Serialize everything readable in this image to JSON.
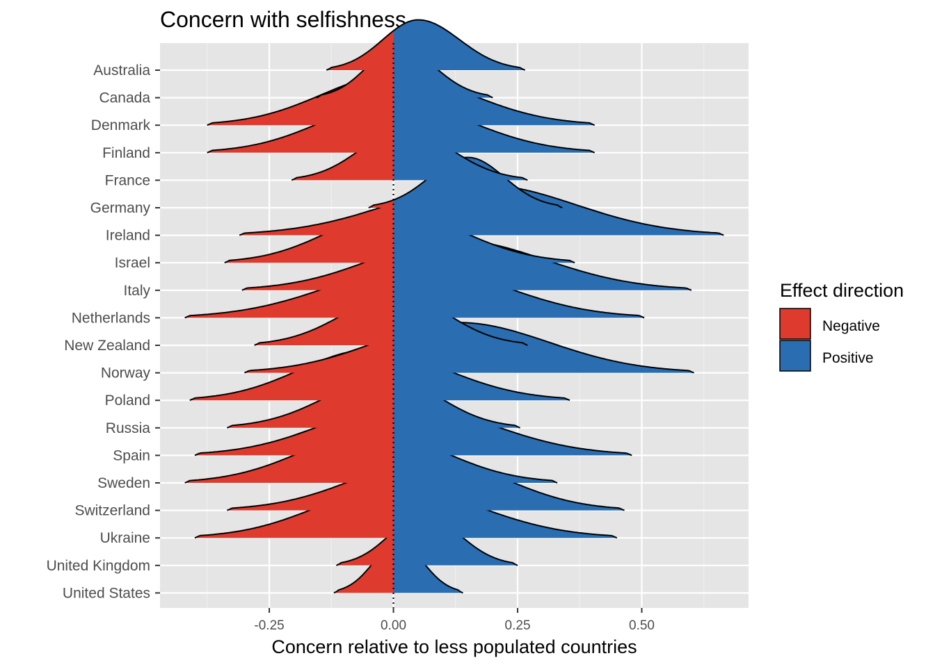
{
  "chart_data": {
    "type": "ridgeline",
    "title": "Concern with selfishness",
    "xlabel": "Concern relative to less populated countries",
    "ylabel": "",
    "xlim": [
      -0.47,
      0.715
    ],
    "x_ticks": [
      -0.25,
      0.0,
      0.25,
      0.5
    ],
    "x_tick_labels": [
      "-0.25",
      "0.00",
      "0.25",
      "0.50"
    ],
    "reference_line": {
      "x": 0,
      "style": "dotted"
    },
    "panel_background": "#e5e5e5",
    "grid": true,
    "legend": {
      "title": "Effect direction",
      "position": "right",
      "items": [
        {
          "label": "Negative",
          "color": "#de3a2e"
        },
        {
          "label": "Positive",
          "color": "#2a6db0"
        }
      ]
    },
    "series": [
      {
        "name": "United States",
        "min": -0.12,
        "max": 0.14,
        "mode": 0.01,
        "peak": 1.0
      },
      {
        "name": "United Kingdom",
        "min": -0.115,
        "max": 0.25,
        "mode": 0.06,
        "peak": 1.0
      },
      {
        "name": "Ukraine",
        "min": -0.4,
        "max": 0.45,
        "mode": 0.0,
        "peak": 1.0
      },
      {
        "name": "Switzerland",
        "min": -0.335,
        "max": 0.465,
        "mode": 0.08,
        "peak": 1.0
      },
      {
        "name": "Sweden",
        "min": -0.42,
        "max": 0.33,
        "mode": -0.04,
        "peak": 1.0
      },
      {
        "name": "Spain",
        "min": -0.4,
        "max": 0.48,
        "mode": 0.02,
        "peak": 1.0
      },
      {
        "name": "Russia",
        "min": -0.335,
        "max": 0.255,
        "mode": -0.01,
        "peak": 1.0
      },
      {
        "name": "Poland",
        "min": -0.41,
        "max": 0.355,
        "mode": -0.05,
        "peak": 1.0
      },
      {
        "name": "Norway",
        "min": -0.3,
        "max": 0.605,
        "mode": 0.13,
        "peak": 1.0
      },
      {
        "name": "New Zealand",
        "min": -0.28,
        "max": 0.27,
        "mode": 0.01,
        "peak": 1.0
      },
      {
        "name": "Netherlands",
        "min": -0.42,
        "max": 0.505,
        "mode": 0.05,
        "peak": 1.0
      },
      {
        "name": "Italy",
        "min": -0.305,
        "max": 0.6,
        "mode": 0.12,
        "peak": 1.0
      },
      {
        "name": "Israel",
        "min": -0.34,
        "max": 0.365,
        "mode": 0.0,
        "peak": 1.0
      },
      {
        "name": "Ireland",
        "min": -0.31,
        "max": 0.665,
        "mode": 0.18,
        "peak": 1.0
      },
      {
        "name": "Germany",
        "min": -0.05,
        "max": 0.34,
        "mode": 0.15,
        "peak": 1.0
      },
      {
        "name": "France",
        "min": -0.205,
        "max": 0.27,
        "mode": 0.02,
        "peak": 1.0
      },
      {
        "name": "Finland",
        "min": -0.375,
        "max": 0.405,
        "mode": 0.0,
        "peak": 1.0
      },
      {
        "name": "Denmark",
        "min": -0.375,
        "max": 0.405,
        "mode": 0.0,
        "peak": 1.0
      },
      {
        "name": "Canada",
        "min": -0.155,
        "max": 0.2,
        "mode": 0.01,
        "peak": 1.0
      },
      {
        "name": "Australia",
        "min": -0.135,
        "max": 0.265,
        "mode": 0.05,
        "peak": 1.0
      }
    ]
  }
}
